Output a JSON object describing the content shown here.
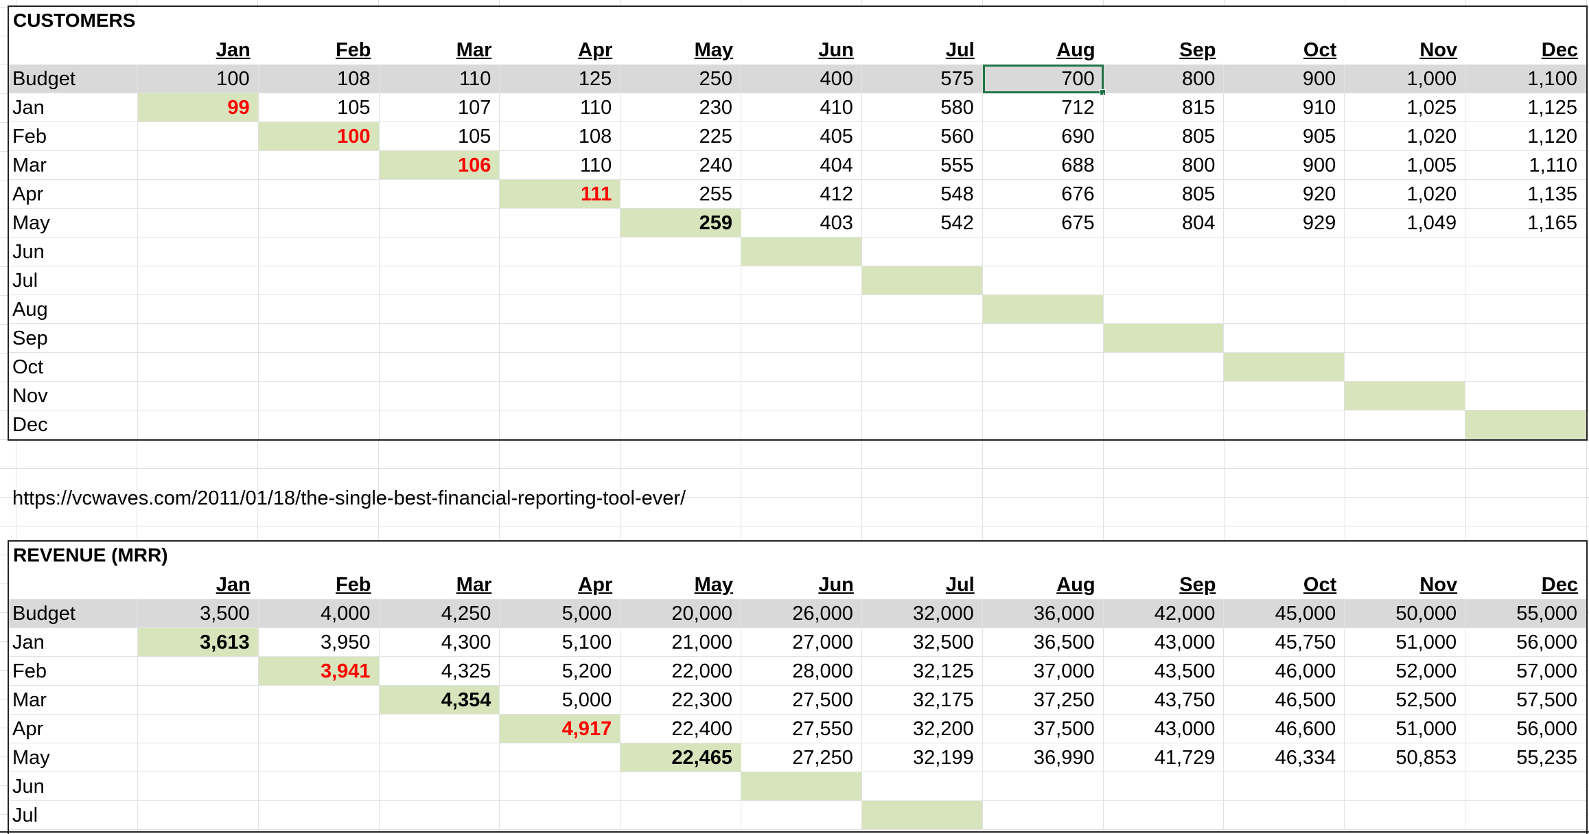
{
  "months": [
    "Jan",
    "Feb",
    "Mar",
    "Apr",
    "May",
    "Jun",
    "Jul",
    "Aug",
    "Sep",
    "Oct",
    "Nov",
    "Dec"
  ],
  "customers": {
    "title": "CUSTOMERS",
    "rows": [
      {
        "label": "Budget",
        "values": [
          "100",
          "108",
          "110",
          "125",
          "250",
          "400",
          "575",
          "700",
          "800",
          "900",
          "1,000",
          "1,100"
        ]
      },
      {
        "label": "Jan",
        "values": [
          "99",
          "105",
          "107",
          "110",
          "230",
          "410",
          "580",
          "712",
          "815",
          "910",
          "1,025",
          "1,125"
        ]
      },
      {
        "label": "Feb",
        "values": [
          "",
          "100",
          "105",
          "108",
          "225",
          "405",
          "560",
          "690",
          "805",
          "905",
          "1,020",
          "1,120"
        ]
      },
      {
        "label": "Mar",
        "values": [
          "",
          "",
          "106",
          "110",
          "240",
          "404",
          "555",
          "688",
          "800",
          "900",
          "1,005",
          "1,110"
        ]
      },
      {
        "label": "Apr",
        "values": [
          "",
          "",
          "",
          "111",
          "255",
          "412",
          "548",
          "676",
          "805",
          "920",
          "1,020",
          "1,135"
        ]
      },
      {
        "label": "May",
        "values": [
          "",
          "",
          "",
          "",
          "259",
          "403",
          "542",
          "675",
          "804",
          "929",
          "1,049",
          "1,165"
        ]
      },
      {
        "label": "Jun",
        "values": [
          "",
          "",
          "",
          "",
          "",
          "",
          "",
          "",
          "",
          "",
          "",
          ""
        ]
      },
      {
        "label": "Jul",
        "values": [
          "",
          "",
          "",
          "",
          "",
          "",
          "",
          "",
          "",
          "",
          "",
          ""
        ]
      },
      {
        "label": "Aug",
        "values": [
          "",
          "",
          "",
          "",
          "",
          "",
          "",
          "",
          "",
          "",
          "",
          ""
        ]
      },
      {
        "label": "Sep",
        "values": [
          "",
          "",
          "",
          "",
          "",
          "",
          "",
          "",
          "",
          "",
          "",
          ""
        ]
      },
      {
        "label": "Oct",
        "values": [
          "",
          "",
          "",
          "",
          "",
          "",
          "",
          "",
          "",
          "",
          "",
          ""
        ]
      },
      {
        "label": "Nov",
        "values": [
          "",
          "",
          "",
          "",
          "",
          "",
          "",
          "",
          "",
          "",
          "",
          ""
        ]
      },
      {
        "label": "Dec",
        "values": [
          "",
          "",
          "",
          "",
          "",
          "",
          "",
          "",
          "",
          "",
          "",
          ""
        ]
      }
    ],
    "diagonal_styles": [
      "red",
      "red",
      "red",
      "red",
      "bold"
    ]
  },
  "link": "https://vcwaves.com/2011/01/18/the-single-best-financial-reporting-tool-ever/",
  "revenue": {
    "title": "REVENUE (MRR)",
    "rows": [
      {
        "label": "Budget",
        "values": [
          "3,500",
          "4,000",
          "4,250",
          "5,000",
          "20,000",
          "26,000",
          "32,000",
          "36,000",
          "42,000",
          "45,000",
          "50,000",
          "55,000"
        ]
      },
      {
        "label": "Jan",
        "values": [
          "3,613",
          "3,950",
          "4,300",
          "5,100",
          "21,000",
          "27,000",
          "32,500",
          "36,500",
          "43,000",
          "45,750",
          "51,000",
          "56,000"
        ]
      },
      {
        "label": "Feb",
        "values": [
          "",
          "3,941",
          "4,325",
          "5,200",
          "22,000",
          "28,000",
          "32,125",
          "37,000",
          "43,500",
          "46,000",
          "52,000",
          "57,000"
        ]
      },
      {
        "label": "Mar",
        "values": [
          "",
          "",
          "4,354",
          "5,000",
          "22,300",
          "27,500",
          "32,175",
          "37,250",
          "43,750",
          "46,500",
          "52,500",
          "57,500"
        ]
      },
      {
        "label": "Apr",
        "values": [
          "",
          "",
          "",
          "4,917",
          "22,400",
          "27,550",
          "32,200",
          "37,500",
          "43,000",
          "46,600",
          "51,000",
          "56,000"
        ]
      },
      {
        "label": "May",
        "values": [
          "",
          "",
          "",
          "",
          "22,465",
          "27,250",
          "32,199",
          "36,990",
          "41,729",
          "46,334",
          "50,853",
          "55,235"
        ]
      },
      {
        "label": "Jun",
        "values": [
          "",
          "",
          "",
          "",
          "",
          "",
          "",
          "",
          "",
          "",
          "",
          ""
        ]
      },
      {
        "label": "Jul",
        "values": [
          "",
          "",
          "",
          "",
          "",
          "",
          "",
          "",
          "",
          "",
          "",
          ""
        ]
      }
    ],
    "diagonal_styles": [
      "bold",
      "red",
      "bold",
      "red",
      "bold"
    ]
  },
  "colors": {
    "accent_green": "#d8e4bc",
    "alert_red": "#ff0000",
    "selection": "#217346",
    "budget_band": "#d9d9d9"
  }
}
